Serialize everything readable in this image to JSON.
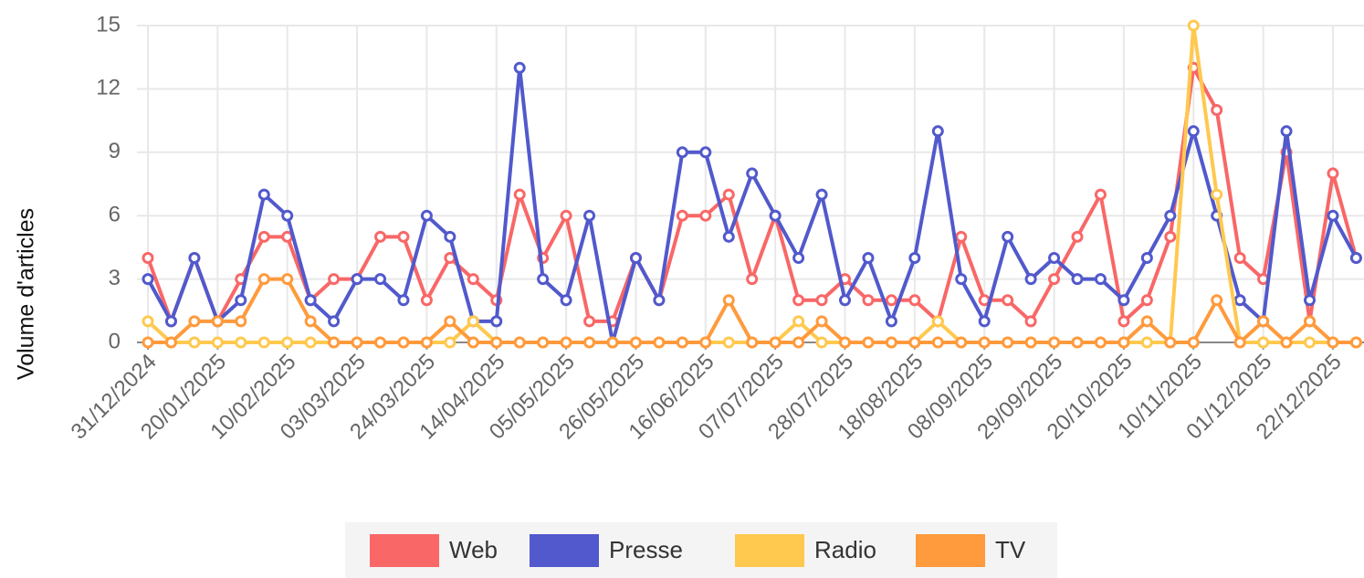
{
  "chart_data": {
    "type": "line",
    "y_label": "Volume d'articles",
    "categories": [
      "31/12/2024",
      null,
      null,
      "20/01/2025",
      null,
      null,
      "10/02/2025",
      null,
      null,
      "03/03/2025",
      null,
      null,
      "24/03/2025",
      null,
      null,
      "14/04/2025",
      null,
      null,
      "05/05/2025",
      null,
      null,
      "26/05/2025",
      null,
      null,
      "16/06/2025",
      null,
      null,
      "07/07/2025",
      null,
      null,
      "28/07/2025",
      null,
      null,
      "18/08/2025",
      null,
      null,
      "08/09/2025",
      null,
      null,
      "29/09/2025",
      null,
      null,
      "20/10/2025",
      null,
      null,
      "10/11/2025",
      null,
      null,
      "01/12/2025",
      null,
      null,
      "22/12/2025",
      null
    ],
    "series": [
      {
        "name": "Web",
        "color": "#f96767",
        "values": [
          4,
          1,
          4,
          1,
          3,
          5,
          5,
          2,
          3,
          3,
          5,
          5,
          2,
          4,
          3,
          2,
          7,
          4,
          6,
          1,
          1,
          4,
          2,
          6,
          6,
          7,
          3,
          6,
          2,
          2,
          3,
          2,
          2,
          2,
          1,
          5,
          2,
          2,
          1,
          3,
          5,
          7,
          1,
          2,
          5,
          13,
          11,
          4,
          3,
          9,
          1,
          8,
          4
        ]
      },
      {
        "name": "Presse",
        "color": "#5159cc",
        "values": [
          3,
          1,
          4,
          1,
          2,
          7,
          6,
          2,
          1,
          3,
          3,
          2,
          6,
          5,
          1,
          1,
          13,
          3,
          2,
          6,
          0,
          4,
          2,
          9,
          9,
          5,
          8,
          6,
          4,
          7,
          2,
          4,
          1,
          4,
          10,
          3,
          1,
          5,
          3,
          4,
          3,
          3,
          2,
          4,
          6,
          10,
          6,
          2,
          1,
          10,
          2,
          6,
          4
        ]
      },
      {
        "name": "Radio",
        "color": "#ffc94f",
        "values": [
          1,
          0,
          0,
          0,
          0,
          0,
          0,
          0,
          0,
          0,
          0,
          0,
          0,
          0,
          1,
          0,
          0,
          0,
          0,
          0,
          0,
          0,
          0,
          0,
          0,
          0,
          0,
          0,
          1,
          0,
          0,
          0,
          0,
          0,
          1,
          0,
          0,
          0,
          0,
          0,
          0,
          0,
          0,
          0,
          0,
          15,
          7,
          0,
          0,
          0,
          0,
          0,
          0
        ]
      },
      {
        "name": "TV",
        "color": "#ff9a3d",
        "values": [
          0,
          0,
          1,
          1,
          1,
          3,
          3,
          1,
          0,
          0,
          0,
          0,
          0,
          1,
          0,
          0,
          0,
          0,
          0,
          0,
          0,
          0,
          0,
          0,
          0,
          2,
          0,
          0,
          0,
          1,
          0,
          0,
          0,
          0,
          0,
          0,
          0,
          0,
          0,
          0,
          0,
          0,
          0,
          1,
          0,
          0,
          2,
          0,
          1,
          0,
          1,
          0,
          0
        ]
      }
    ],
    "ylim": [
      0,
      15
    ],
    "yticks": [
      0,
      3,
      6,
      9,
      12,
      15
    ],
    "grid": true
  }
}
